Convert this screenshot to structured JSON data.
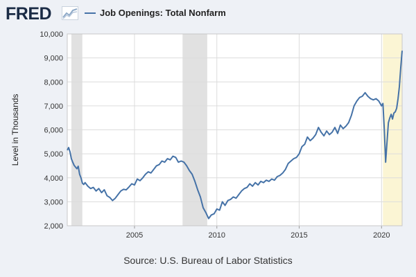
{
  "header": {
    "logo_text": "FRED",
    "logo_icon": "line-chart-icon",
    "legend_label": "Job Openings: Total Nonfarm"
  },
  "footer": {
    "source": "Source: U.S. Bureau of Labor Statistics"
  },
  "colors": {
    "series": "#4572a7",
    "recession": "#e1e1e1",
    "highlight": "#fbf5d4",
    "grid": "#dcdcdc",
    "background": "#eef1f6"
  },
  "chart_data": {
    "type": "line",
    "ylabel": "Level in Thousands",
    "ylim": [
      2000,
      10000
    ],
    "xlim": [
      "2000-12",
      "2021-04"
    ],
    "y_ticks": [
      2000,
      3000,
      4000,
      5000,
      6000,
      7000,
      8000,
      9000,
      10000
    ],
    "y_tick_labels": [
      "2,000",
      "3,000",
      "4,000",
      "5,000",
      "6,000",
      "7,000",
      "8,000",
      "9,000",
      "10,000"
    ],
    "x_ticks": [
      "2005",
      "2010",
      "2015",
      "2020"
    ],
    "grid": true,
    "legend_position": "top-left",
    "shaded_regions": [
      {
        "start": "2001-03",
        "end": "2001-11",
        "kind": "recession"
      },
      {
        "start": "2007-12",
        "end": "2009-06",
        "kind": "recession"
      },
      {
        "start": "2020-02",
        "end": "2021-04",
        "kind": "highlight"
      }
    ],
    "series": [
      {
        "name": "Job Openings: Total Nonfarm",
        "points": [
          [
            "2000-12",
            5150
          ],
          [
            "2001-01",
            5260
          ],
          [
            "2001-02",
            5080
          ],
          [
            "2001-03",
            4800
          ],
          [
            "2001-04",
            4650
          ],
          [
            "2001-05",
            4520
          ],
          [
            "2001-06",
            4450
          ],
          [
            "2001-07",
            4380
          ],
          [
            "2001-08",
            4480
          ],
          [
            "2001-09",
            4150
          ],
          [
            "2001-10",
            4000
          ],
          [
            "2001-11",
            3780
          ],
          [
            "2001-12",
            3720
          ],
          [
            "2002-01",
            3800
          ],
          [
            "2002-03",
            3650
          ],
          [
            "2002-05",
            3550
          ],
          [
            "2002-07",
            3600
          ],
          [
            "2002-09",
            3450
          ],
          [
            "2002-11",
            3550
          ],
          [
            "2003-01",
            3380
          ],
          [
            "2003-03",
            3500
          ],
          [
            "2003-05",
            3250
          ],
          [
            "2003-07",
            3180
          ],
          [
            "2003-09",
            3050
          ],
          [
            "2003-11",
            3150
          ],
          [
            "2004-01",
            3300
          ],
          [
            "2004-03",
            3450
          ],
          [
            "2004-05",
            3520
          ],
          [
            "2004-07",
            3500
          ],
          [
            "2004-09",
            3620
          ],
          [
            "2004-11",
            3750
          ],
          [
            "2005-01",
            3700
          ],
          [
            "2005-03",
            3950
          ],
          [
            "2005-05",
            3880
          ],
          [
            "2005-07",
            4000
          ],
          [
            "2005-09",
            4150
          ],
          [
            "2005-11",
            4250
          ],
          [
            "2006-01",
            4200
          ],
          [
            "2006-03",
            4350
          ],
          [
            "2006-05",
            4500
          ],
          [
            "2006-07",
            4550
          ],
          [
            "2006-09",
            4700
          ],
          [
            "2006-11",
            4650
          ],
          [
            "2007-01",
            4800
          ],
          [
            "2007-03",
            4750
          ],
          [
            "2007-05",
            4900
          ],
          [
            "2007-07",
            4850
          ],
          [
            "2007-09",
            4650
          ],
          [
            "2007-11",
            4700
          ],
          [
            "2008-01",
            4650
          ],
          [
            "2008-03",
            4500
          ],
          [
            "2008-05",
            4300
          ],
          [
            "2008-07",
            4150
          ],
          [
            "2008-09",
            3850
          ],
          [
            "2008-11",
            3500
          ],
          [
            "2009-01",
            3200
          ],
          [
            "2009-03",
            2750
          ],
          [
            "2009-05",
            2550
          ],
          [
            "2009-07",
            2300
          ],
          [
            "2009-09",
            2450
          ],
          [
            "2009-11",
            2500
          ],
          [
            "2010-01",
            2700
          ],
          [
            "2010-03",
            2650
          ],
          [
            "2010-05",
            3000
          ],
          [
            "2010-07",
            2850
          ],
          [
            "2010-09",
            3050
          ],
          [
            "2010-11",
            3100
          ],
          [
            "2011-01",
            3200
          ],
          [
            "2011-03",
            3150
          ],
          [
            "2011-05",
            3300
          ],
          [
            "2011-07",
            3450
          ],
          [
            "2011-09",
            3550
          ],
          [
            "2011-11",
            3600
          ],
          [
            "2012-01",
            3750
          ],
          [
            "2012-03",
            3650
          ],
          [
            "2012-05",
            3800
          ],
          [
            "2012-07",
            3700
          ],
          [
            "2012-09",
            3850
          ],
          [
            "2012-11",
            3800
          ],
          [
            "2013-01",
            3900
          ],
          [
            "2013-03",
            3850
          ],
          [
            "2013-05",
            3950
          ],
          [
            "2013-07",
            3900
          ],
          [
            "2013-09",
            4050
          ],
          [
            "2013-11",
            4100
          ],
          [
            "2014-01",
            4200
          ],
          [
            "2014-03",
            4350
          ],
          [
            "2014-05",
            4600
          ],
          [
            "2014-07",
            4700
          ],
          [
            "2014-09",
            4800
          ],
          [
            "2014-11",
            4850
          ],
          [
            "2015-01",
            5000
          ],
          [
            "2015-03",
            5300
          ],
          [
            "2015-05",
            5400
          ],
          [
            "2015-07",
            5700
          ],
          [
            "2015-09",
            5550
          ],
          [
            "2015-11",
            5650
          ],
          [
            "2016-01",
            5800
          ],
          [
            "2016-03",
            6100
          ],
          [
            "2016-05",
            5900
          ],
          [
            "2016-07",
            5750
          ],
          [
            "2016-09",
            5950
          ],
          [
            "2016-11",
            5800
          ],
          [
            "2017-01",
            5900
          ],
          [
            "2017-03",
            6100
          ],
          [
            "2017-05",
            5850
          ],
          [
            "2017-07",
            6200
          ],
          [
            "2017-09",
            6050
          ],
          [
            "2017-11",
            6150
          ],
          [
            "2018-01",
            6300
          ],
          [
            "2018-03",
            6600
          ],
          [
            "2018-05",
            7000
          ],
          [
            "2018-07",
            7200
          ],
          [
            "2018-09",
            7350
          ],
          [
            "2018-11",
            7400
          ],
          [
            "2019-01",
            7550
          ],
          [
            "2019-03",
            7400
          ],
          [
            "2019-05",
            7300
          ],
          [
            "2019-07",
            7250
          ],
          [
            "2019-09",
            7300
          ],
          [
            "2019-11",
            7200
          ],
          [
            "2020-01",
            7000
          ],
          [
            "2020-02",
            7100
          ],
          [
            "2020-03",
            6000
          ],
          [
            "2020-04",
            4650
          ],
          [
            "2020-05",
            5500
          ],
          [
            "2020-06",
            6300
          ],
          [
            "2020-07",
            6500
          ],
          [
            "2020-08",
            6650
          ],
          [
            "2020-09",
            6450
          ],
          [
            "2020-10",
            6700
          ],
          [
            "2020-11",
            6750
          ],
          [
            "2020-12",
            6900
          ],
          [
            "2021-01",
            7300
          ],
          [
            "2021-02",
            7800
          ],
          [
            "2021-03",
            8600
          ],
          [
            "2021-04",
            9300
          ]
        ]
      }
    ]
  }
}
